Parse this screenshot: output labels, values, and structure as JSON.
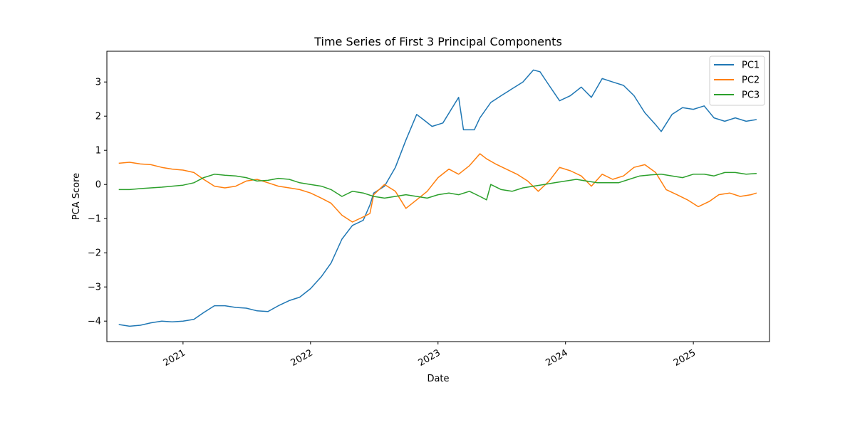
{
  "chart_data": {
    "type": "line",
    "title": "Time Series of First 3 Principal Components",
    "xlabel": "Date",
    "ylabel": "PCA Score",
    "x_tick_labels": [
      "2021",
      "2022",
      "2023",
      "2024",
      "2025"
    ],
    "x_ticks": [
      "2021-01-01",
      "2022-01-01",
      "2023-01-01",
      "2024-01-01",
      "2025-01-01"
    ],
    "y_ticks": [
      -4,
      -3,
      -2,
      -1,
      0,
      1,
      2,
      3
    ],
    "xlim": [
      "2020-05-28",
      "2025-08-07"
    ],
    "ylim": [
      -4.6,
      3.9
    ],
    "grid": false,
    "legend_position": "upper right",
    "series": [
      {
        "name": "PC1",
        "color": "#1f77b4",
        "points": [
          [
            "2020-07-01",
            -4.1
          ],
          [
            "2020-08-01",
            -4.15
          ],
          [
            "2020-09-01",
            -4.12
          ],
          [
            "2020-10-01",
            -4.05
          ],
          [
            "2020-11-01",
            -4.0
          ],
          [
            "2020-12-01",
            -4.02
          ],
          [
            "2021-01-01",
            -4.0
          ],
          [
            "2021-02-01",
            -3.95
          ],
          [
            "2021-03-01",
            -3.75
          ],
          [
            "2021-04-01",
            -3.55
          ],
          [
            "2021-05-01",
            -3.55
          ],
          [
            "2021-06-01",
            -3.6
          ],
          [
            "2021-07-01",
            -3.62
          ],
          [
            "2021-08-01",
            -3.7
          ],
          [
            "2021-09-01",
            -3.72
          ],
          [
            "2021-10-01",
            -3.55
          ],
          [
            "2021-11-01",
            -3.4
          ],
          [
            "2021-12-01",
            -3.3
          ],
          [
            "2022-01-01",
            -3.05
          ],
          [
            "2022-02-01",
            -2.7
          ],
          [
            "2022-03-01",
            -2.3
          ],
          [
            "2022-04-01",
            -1.6
          ],
          [
            "2022-05-01",
            -1.2
          ],
          [
            "2022-06-01",
            -1.05
          ],
          [
            "2022-06-20",
            -0.6
          ],
          [
            "2022-07-01",
            -0.25
          ],
          [
            "2022-08-01",
            -0.05
          ],
          [
            "2022-09-01",
            0.5
          ],
          [
            "2022-10-01",
            1.3
          ],
          [
            "2022-11-01",
            2.05
          ],
          [
            "2022-11-20",
            1.9
          ],
          [
            "2022-12-15",
            1.7
          ],
          [
            "2023-01-15",
            1.8
          ],
          [
            "2023-03-01",
            2.55
          ],
          [
            "2023-03-15",
            1.6
          ],
          [
            "2023-04-15",
            1.6
          ],
          [
            "2023-05-01",
            1.95
          ],
          [
            "2023-06-01",
            2.4
          ],
          [
            "2023-07-01",
            2.6
          ],
          [
            "2023-08-01",
            2.8
          ],
          [
            "2023-09-01",
            3.0
          ],
          [
            "2023-10-01",
            3.35
          ],
          [
            "2023-10-20",
            3.3
          ],
          [
            "2023-11-15",
            2.9
          ],
          [
            "2023-12-15",
            2.45
          ],
          [
            "2024-01-15",
            2.6
          ],
          [
            "2024-02-15",
            2.85
          ],
          [
            "2024-03-15",
            2.55
          ],
          [
            "2024-04-15",
            3.1
          ],
          [
            "2024-05-15",
            3.0
          ],
          [
            "2024-06-15",
            2.9
          ],
          [
            "2024-07-15",
            2.6
          ],
          [
            "2024-08-15",
            2.1
          ],
          [
            "2024-09-15",
            1.75
          ],
          [
            "2024-10-01",
            1.55
          ],
          [
            "2024-11-01",
            2.05
          ],
          [
            "2024-12-01",
            2.25
          ],
          [
            "2025-01-01",
            2.2
          ],
          [
            "2025-02-01",
            2.3
          ],
          [
            "2025-03-01",
            1.95
          ],
          [
            "2025-04-01",
            1.85
          ],
          [
            "2025-05-01",
            1.95
          ],
          [
            "2025-06-01",
            1.85
          ],
          [
            "2025-07-01",
            1.9
          ]
        ]
      },
      {
        "name": "PC2",
        "color": "#ff7f0e",
        "points": [
          [
            "2020-07-01",
            0.62
          ],
          [
            "2020-08-01",
            0.65
          ],
          [
            "2020-09-01",
            0.6
          ],
          [
            "2020-10-01",
            0.58
          ],
          [
            "2020-11-01",
            0.5
          ],
          [
            "2020-12-01",
            0.45
          ],
          [
            "2021-01-01",
            0.42
          ],
          [
            "2021-02-01",
            0.35
          ],
          [
            "2021-03-01",
            0.15
          ],
          [
            "2021-04-01",
            -0.05
          ],
          [
            "2021-05-01",
            -0.1
          ],
          [
            "2021-06-01",
            -0.05
          ],
          [
            "2021-07-01",
            0.1
          ],
          [
            "2021-08-01",
            0.15
          ],
          [
            "2021-09-01",
            0.05
          ],
          [
            "2021-10-01",
            -0.05
          ],
          [
            "2021-11-01",
            -0.1
          ],
          [
            "2021-12-01",
            -0.15
          ],
          [
            "2022-01-01",
            -0.25
          ],
          [
            "2022-02-01",
            -0.4
          ],
          [
            "2022-03-01",
            -0.55
          ],
          [
            "2022-04-01",
            -0.9
          ],
          [
            "2022-05-01",
            -1.1
          ],
          [
            "2022-06-01",
            -0.95
          ],
          [
            "2022-06-20",
            -0.85
          ],
          [
            "2022-07-01",
            -0.3
          ],
          [
            "2022-08-01",
            0.0
          ],
          [
            "2022-09-01",
            -0.2
          ],
          [
            "2022-10-01",
            -0.7
          ],
          [
            "2022-11-01",
            -0.45
          ],
          [
            "2022-12-01",
            -0.2
          ],
          [
            "2023-01-01",
            0.2
          ],
          [
            "2023-02-01",
            0.45
          ],
          [
            "2023-03-01",
            0.3
          ],
          [
            "2023-04-01",
            0.55
          ],
          [
            "2023-05-01",
            0.9
          ],
          [
            "2023-05-20",
            0.75
          ],
          [
            "2023-06-15",
            0.6
          ],
          [
            "2023-07-15",
            0.45
          ],
          [
            "2023-08-15",
            0.3
          ],
          [
            "2023-09-15",
            0.1
          ],
          [
            "2023-10-15",
            -0.2
          ],
          [
            "2023-11-15",
            0.1
          ],
          [
            "2023-12-15",
            0.5
          ],
          [
            "2024-01-15",
            0.4
          ],
          [
            "2024-02-15",
            0.25
          ],
          [
            "2024-03-15",
            -0.05
          ],
          [
            "2024-04-15",
            0.3
          ],
          [
            "2024-05-15",
            0.15
          ],
          [
            "2024-06-15",
            0.25
          ],
          [
            "2024-07-15",
            0.5
          ],
          [
            "2024-08-15",
            0.58
          ],
          [
            "2024-09-15",
            0.35
          ],
          [
            "2024-10-15",
            -0.15
          ],
          [
            "2024-11-15",
            -0.3
          ],
          [
            "2024-12-15",
            -0.45
          ],
          [
            "2025-01-15",
            -0.65
          ],
          [
            "2025-02-15",
            -0.5
          ],
          [
            "2025-03-15",
            -0.3
          ],
          [
            "2025-04-15",
            -0.25
          ],
          [
            "2025-05-15",
            -0.35
          ],
          [
            "2025-06-15",
            -0.3
          ],
          [
            "2025-07-01",
            -0.25
          ]
        ]
      },
      {
        "name": "PC3",
        "color": "#2ca02c",
        "points": [
          [
            "2020-07-01",
            -0.15
          ],
          [
            "2020-08-01",
            -0.15
          ],
          [
            "2020-09-01",
            -0.12
          ],
          [
            "2020-10-01",
            -0.1
          ],
          [
            "2020-11-01",
            -0.08
          ],
          [
            "2020-12-01",
            -0.05
          ],
          [
            "2021-01-01",
            -0.02
          ],
          [
            "2021-02-01",
            0.05
          ],
          [
            "2021-03-01",
            0.2
          ],
          [
            "2021-04-01",
            0.3
          ],
          [
            "2021-05-01",
            0.27
          ],
          [
            "2021-06-01",
            0.25
          ],
          [
            "2021-07-01",
            0.2
          ],
          [
            "2021-08-01",
            0.1
          ],
          [
            "2021-09-01",
            0.12
          ],
          [
            "2021-10-01",
            0.18
          ],
          [
            "2021-11-01",
            0.15
          ],
          [
            "2021-12-01",
            0.05
          ],
          [
            "2022-01-01",
            0.0
          ],
          [
            "2022-02-01",
            -0.05
          ],
          [
            "2022-03-01",
            -0.15
          ],
          [
            "2022-04-01",
            -0.35
          ],
          [
            "2022-05-01",
            -0.2
          ],
          [
            "2022-06-01",
            -0.25
          ],
          [
            "2022-07-01",
            -0.35
          ],
          [
            "2022-08-01",
            -0.4
          ],
          [
            "2022-09-01",
            -0.35
          ],
          [
            "2022-10-01",
            -0.3
          ],
          [
            "2022-11-01",
            -0.35
          ],
          [
            "2022-12-01",
            -0.4
          ],
          [
            "2023-01-01",
            -0.3
          ],
          [
            "2023-02-01",
            -0.25
          ],
          [
            "2023-03-01",
            -0.3
          ],
          [
            "2023-04-01",
            -0.2
          ],
          [
            "2023-05-01",
            -0.35
          ],
          [
            "2023-05-20",
            -0.45
          ],
          [
            "2023-06-01",
            0.0
          ],
          [
            "2023-07-01",
            -0.15
          ],
          [
            "2023-08-01",
            -0.2
          ],
          [
            "2023-09-01",
            -0.1
          ],
          [
            "2023-10-01",
            -0.05
          ],
          [
            "2023-11-01",
            0.0
          ],
          [
            "2023-12-01",
            0.05
          ],
          [
            "2024-01-01",
            0.1
          ],
          [
            "2024-02-01",
            0.15
          ],
          [
            "2024-03-01",
            0.1
          ],
          [
            "2024-04-01",
            0.05
          ],
          [
            "2024-05-01",
            0.05
          ],
          [
            "2024-06-01",
            0.05
          ],
          [
            "2024-07-01",
            0.15
          ],
          [
            "2024-08-01",
            0.25
          ],
          [
            "2024-09-01",
            0.28
          ],
          [
            "2024-10-01",
            0.3
          ],
          [
            "2024-11-01",
            0.25
          ],
          [
            "2024-12-01",
            0.2
          ],
          [
            "2025-01-01",
            0.3
          ],
          [
            "2025-02-01",
            0.3
          ],
          [
            "2025-03-01",
            0.25
          ],
          [
            "2025-04-01",
            0.35
          ],
          [
            "2025-05-01",
            0.35
          ],
          [
            "2025-06-01",
            0.3
          ],
          [
            "2025-07-01",
            0.32
          ]
        ]
      }
    ]
  }
}
